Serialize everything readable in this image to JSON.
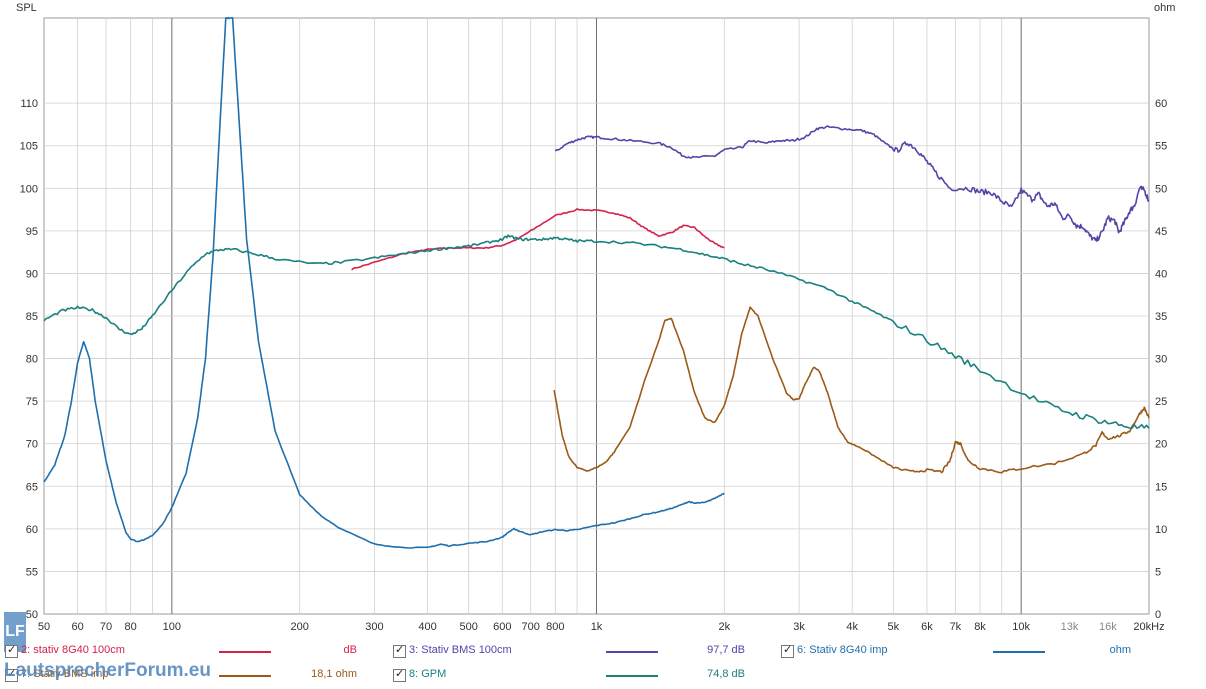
{
  "chart_data": {
    "type": "line",
    "left_axis_title": "SPL",
    "right_axis_title": "ohm",
    "x_scale": "log",
    "xlim": [
      50,
      20000
    ],
    "ylim_left": [
      50,
      120
    ],
    "ylim_right": [
      0,
      70
    ],
    "grid": true,
    "x_tick_labels": [
      {
        "v": 50,
        "t": "50"
      },
      {
        "v": 60,
        "t": "60"
      },
      {
        "v": 70,
        "t": "70"
      },
      {
        "v": 80,
        "t": "80"
      },
      {
        "v": 100,
        "t": "100"
      },
      {
        "v": 200,
        "t": "200"
      },
      {
        "v": 300,
        "t": "300"
      },
      {
        "v": 400,
        "t": "400"
      },
      {
        "v": 500,
        "t": "500"
      },
      {
        "v": 600,
        "t": "600"
      },
      {
        "v": 700,
        "t": "700"
      },
      {
        "v": 800,
        "t": "800"
      },
      {
        "v": 1000,
        "t": "1k"
      },
      {
        "v": 2000,
        "t": "2k"
      },
      {
        "v": 3000,
        "t": "3k"
      },
      {
        "v": 4000,
        "t": "4k"
      },
      {
        "v": 5000,
        "t": "5k"
      },
      {
        "v": 6000,
        "t": "6k"
      },
      {
        "v": 7000,
        "t": "7k"
      },
      {
        "v": 8000,
        "t": "8k"
      },
      {
        "v": 10000,
        "t": "10k"
      },
      {
        "v": 13000,
        "t": "13k",
        "grey": true
      },
      {
        "v": 16000,
        "t": "16k",
        "grey": true
      },
      {
        "v": 20000,
        "t": "20kHz"
      }
    ],
    "y_left_ticks": [
      50,
      55,
      60,
      65,
      70,
      75,
      80,
      85,
      90,
      95,
      100,
      105,
      110
    ],
    "y_right_ticks": [
      0,
      5,
      10,
      15,
      20,
      25,
      30,
      35,
      40,
      45,
      50,
      55,
      60
    ],
    "series": [
      {
        "name": "2: stativ 8G40 100cm",
        "color": "#d6214b",
        "axis": "left",
        "noise": 0.15,
        "points": [
          [
            265,
            90.5
          ],
          [
            300,
            91.3
          ],
          [
            350,
            92.3
          ],
          [
            400,
            92.8
          ],
          [
            450,
            93
          ],
          [
            500,
            93
          ],
          [
            550,
            93
          ],
          [
            600,
            93.3
          ],
          [
            650,
            94
          ],
          [
            700,
            95
          ],
          [
            800,
            96.8
          ],
          [
            900,
            97.5
          ],
          [
            1000,
            97.4
          ],
          [
            1100,
            97.1
          ],
          [
            1200,
            96.5
          ],
          [
            1300,
            95.3
          ],
          [
            1400,
            94.4
          ],
          [
            1500,
            94.8
          ],
          [
            1600,
            95.6
          ],
          [
            1700,
            95.4
          ],
          [
            1800,
            94.3
          ],
          [
            1900,
            93.5
          ],
          [
            2000,
            93
          ]
        ]
      },
      {
        "name": "3: Stativ BMS 100cm",
        "color": "#5046a8",
        "axis": "left",
        "noise": 0.25,
        "points": [
          [
            800,
            104.3
          ],
          [
            850,
            105.2
          ],
          [
            900,
            105.7
          ],
          [
            950,
            106
          ],
          [
            1000,
            106
          ],
          [
            1100,
            105.8
          ],
          [
            1200,
            105.6
          ],
          [
            1400,
            105.3
          ],
          [
            1500,
            104.8
          ],
          [
            1600,
            103.8
          ],
          [
            1700,
            103.6
          ],
          [
            1900,
            103.8
          ],
          [
            2000,
            104.5
          ],
          [
            2200,
            104.8
          ],
          [
            2300,
            105.6
          ],
          [
            2500,
            105.3
          ],
          [
            2700,
            105.6
          ],
          [
            2900,
            105.6
          ],
          [
            3100,
            106
          ],
          [
            3300,
            107
          ],
          [
            3500,
            107.2
          ],
          [
            3800,
            107
          ],
          [
            4200,
            106.8
          ],
          [
            4500,
            106.3
          ],
          [
            4800,
            105.2
          ],
          [
            5100,
            104.4
          ],
          [
            5400,
            105.4
          ],
          [
            5700,
            104.5
          ],
          [
            6000,
            103.1
          ],
          [
            6300,
            101.8
          ],
          [
            6800,
            100
          ],
          [
            7500,
            100
          ],
          [
            8000,
            99.6
          ],
          [
            8500,
            99.5
          ],
          [
            9000,
            98.5
          ],
          [
            9500,
            97.7
          ],
          [
            10000,
            99.8
          ],
          [
            10600,
            98.7
          ],
          [
            11000,
            99.3
          ],
          [
            11500,
            97.9
          ],
          [
            12000,
            98.2
          ],
          [
            12500,
            96.5
          ],
          [
            13000,
            96.8
          ],
          [
            13500,
            95.6
          ],
          [
            14000,
            95.5
          ],
          [
            14500,
            94.4
          ],
          [
            15000,
            93.8
          ],
          [
            15500,
            94.8
          ],
          [
            16000,
            96.5
          ],
          [
            16600,
            96.2
          ],
          [
            17000,
            94.8
          ],
          [
            17500,
            96
          ],
          [
            18000,
            97.3
          ],
          [
            18500,
            98
          ],
          [
            19000,
            100
          ],
          [
            19500,
            99.8
          ],
          [
            20000,
            98.5
          ]
        ]
      },
      {
        "name": "6: Stativ 8G40 imp",
        "color": "#1f6fad",
        "axis": "right",
        "noise": 0.1,
        "points": [
          [
            50,
            15.5
          ],
          [
            53,
            17.5
          ],
          [
            56,
            21
          ],
          [
            58,
            25
          ],
          [
            60,
            29.5
          ],
          [
            62,
            32
          ],
          [
            64,
            30
          ],
          [
            66,
            25
          ],
          [
            70,
            18
          ],
          [
            74,
            13
          ],
          [
            78,
            9.6
          ],
          [
            80,
            8.8
          ],
          [
            83,
            8.5
          ],
          [
            86,
            8.7
          ],
          [
            90,
            9.2
          ],
          [
            95,
            10.5
          ],
          [
            100,
            12.5
          ],
          [
            108,
            16.5
          ],
          [
            115,
            23
          ],
          [
            120,
            30
          ],
          [
            125,
            42
          ],
          [
            130,
            58
          ],
          [
            134,
            70
          ],
          [
            139,
            70
          ],
          [
            144,
            58
          ],
          [
            150,
            44
          ],
          [
            160,
            32
          ],
          [
            175,
            21.5
          ],
          [
            200,
            14
          ],
          [
            225,
            11.5
          ],
          [
            250,
            10
          ],
          [
            300,
            8.2
          ],
          [
            350,
            7.8
          ],
          [
            400,
            7.8
          ],
          [
            430,
            8.2
          ],
          [
            450,
            8
          ],
          [
            500,
            8.3
          ],
          [
            550,
            8.5
          ],
          [
            600,
            9
          ],
          [
            620,
            9.6
          ],
          [
            640,
            10
          ],
          [
            660,
            9.7
          ],
          [
            700,
            9.3
          ],
          [
            750,
            9.7
          ],
          [
            800,
            9.9
          ],
          [
            850,
            9.8
          ],
          [
            900,
            9.9
          ],
          [
            1000,
            10.4
          ],
          [
            1100,
            10.7
          ],
          [
            1200,
            11.2
          ],
          [
            1300,
            11.7
          ],
          [
            1400,
            12
          ],
          [
            1500,
            12.4
          ],
          [
            1600,
            12.9
          ],
          [
            1650,
            13.2
          ],
          [
            1700,
            13
          ],
          [
            1800,
            13.1
          ],
          [
            1900,
            13.6
          ],
          [
            2000,
            14.2
          ]
        ]
      },
      {
        "name": "7: Stativ BMS imp",
        "value": "18,1 ohm",
        "color": "#9b5a17",
        "axis": "right",
        "noise": 0.12,
        "points": [
          [
            795,
            26.3
          ],
          [
            810,
            24
          ],
          [
            830,
            21
          ],
          [
            860,
            18.5
          ],
          [
            900,
            17.2
          ],
          [
            950,
            16.8
          ],
          [
            1000,
            17.2
          ],
          [
            1050,
            17.8
          ],
          [
            1100,
            19
          ],
          [
            1200,
            22
          ],
          [
            1300,
            27.5
          ],
          [
            1400,
            32
          ],
          [
            1450,
            34.5
          ],
          [
            1500,
            34.7
          ],
          [
            1600,
            31
          ],
          [
            1700,
            26
          ],
          [
            1800,
            23
          ],
          [
            1900,
            22.5
          ],
          [
            2000,
            24.5
          ],
          [
            2100,
            28
          ],
          [
            2200,
            33
          ],
          [
            2300,
            36
          ],
          [
            2400,
            35
          ],
          [
            2600,
            30
          ],
          [
            2800,
            26
          ],
          [
            2900,
            25.2
          ],
          [
            3000,
            25.3
          ],
          [
            3100,
            27
          ],
          [
            3250,
            29
          ],
          [
            3350,
            28.5
          ],
          [
            3500,
            26
          ],
          [
            3700,
            22
          ],
          [
            3900,
            20.2
          ],
          [
            4200,
            19.5
          ],
          [
            4600,
            18.3
          ],
          [
            5000,
            17.2
          ],
          [
            5500,
            16.7
          ],
          [
            6000,
            16.9
          ],
          [
            6500,
            16.7
          ],
          [
            6800,
            18
          ],
          [
            7000,
            20.2
          ],
          [
            7200,
            20
          ],
          [
            7500,
            18
          ],
          [
            8000,
            17.1
          ],
          [
            9000,
            16.7
          ],
          [
            10000,
            17.1
          ],
          [
            12000,
            17.7
          ],
          [
            14000,
            18.8
          ],
          [
            15000,
            19.8
          ],
          [
            15500,
            21.3
          ],
          [
            16000,
            20.6
          ],
          [
            17000,
            20.9
          ],
          [
            18000,
            21.5
          ],
          [
            19000,
            23.5
          ],
          [
            19500,
            24.2
          ],
          [
            20000,
            23
          ]
        ]
      },
      {
        "name": "8: GPM",
        "value": "74,8 dB",
        "color": "#1a8080",
        "axis": "left",
        "noise": 0.3,
        "points": [
          [
            50,
            84.5
          ],
          [
            55,
            85.6
          ],
          [
            60,
            86
          ],
          [
            65,
            85.7
          ],
          [
            70,
            84.8
          ],
          [
            75,
            83.5
          ],
          [
            80,
            82.8
          ],
          [
            85,
            83.5
          ],
          [
            90,
            85
          ],
          [
            100,
            88
          ],
          [
            110,
            90.5
          ],
          [
            120,
            92.3
          ],
          [
            130,
            92.8
          ],
          [
            140,
            92.8
          ],
          [
            160,
            92.2
          ],
          [
            180,
            91.6
          ],
          [
            220,
            91.1
          ],
          [
            250,
            91.3
          ],
          [
            300,
            91.8
          ],
          [
            350,
            92.3
          ],
          [
            400,
            92.7
          ],
          [
            450,
            93
          ],
          [
            500,
            93.2
          ],
          [
            550,
            93.6
          ],
          [
            600,
            94
          ],
          [
            620,
            94.4
          ],
          [
            660,
            94
          ],
          [
            700,
            94
          ],
          [
            750,
            94
          ],
          [
            800,
            94.2
          ],
          [
            850,
            94
          ],
          [
            900,
            93.8
          ],
          [
            1000,
            93.8
          ],
          [
            1200,
            93.6
          ],
          [
            1400,
            93.2
          ],
          [
            1600,
            92.8
          ],
          [
            1800,
            92.2
          ],
          [
            2000,
            91.7
          ],
          [
            2200,
            91.1
          ],
          [
            2500,
            90.5
          ],
          [
            3000,
            89.3
          ],
          [
            3500,
            88.2
          ],
          [
            4000,
            86.7
          ],
          [
            4500,
            85.5
          ],
          [
            5000,
            84.3
          ],
          [
            6000,
            82.2
          ],
          [
            7000,
            80.3
          ],
          [
            8000,
            78.7
          ],
          [
            10000,
            76
          ],
          [
            12000,
            74.2
          ],
          [
            14000,
            73.2
          ],
          [
            16000,
            72.5
          ],
          [
            18000,
            72
          ],
          [
            20000,
            71.8
          ]
        ]
      }
    ]
  },
  "legend": {
    "row1": [
      {
        "label": "2: stativ 8G40 100cm",
        "color": "#d6214b",
        "value": "dB"
      },
      {
        "label": "3: Stativ BMS 100cm",
        "color": "#5046a8",
        "value": "97,7 dB"
      },
      {
        "label": "6: Stativ 8G40 imp",
        "color": "#1f6fad",
        "value": "ohm"
      }
    ],
    "row2": [
      {
        "label": "7: Stativ BMS imp",
        "color": "#9b5a17",
        "value": "18,1 ohm"
      },
      {
        "label": "8: GPM",
        "color": "#1a8080",
        "value": "74,8 dB"
      }
    ]
  },
  "watermark": {
    "logo": "LF",
    "text": "LautsprecherForum.eu"
  }
}
